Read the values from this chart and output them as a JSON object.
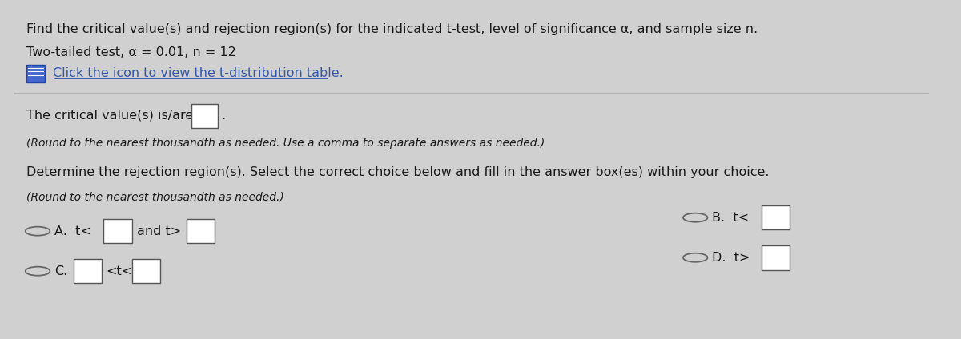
{
  "bg_color": "#d0d0d0",
  "panel_color": "#e8e8e8",
  "line1": "Find the critical value(s) and rejection region(s) for the indicated t-test, level of significance α, and sample size n.",
  "line2": "Two-tailed test, α = 0.01, n = 12",
  "line3_text": "Click the icon to view the t-distribution table.",
  "line4": "The critical value(s) is/are",
  "line5": "(Round to the nearest thousandth as needed. Use a comma to separate answers as needed.)",
  "line6": "Determine the rejection region(s). Select the correct choice below and fill in the answer box(es) within your choice.",
  "line7": "(Round to the nearest thousandth as needed.)",
  "optA_label": "A.  t<",
  "optA_mid": "and t>",
  "optB_label": "B.  t<",
  "optC_label": "C.",
  "optC_mid": "<t<",
  "optD_label": "D.  t>",
  "text_color": "#1a1a1a",
  "blue_color": "#3355aa",
  "box_border": "#555555",
  "icon_color": "#4466cc",
  "icon_border": "#2244aa",
  "separator_color": "#aaaaaa",
  "font_size_main": 11.5,
  "font_size_small": 10.0
}
